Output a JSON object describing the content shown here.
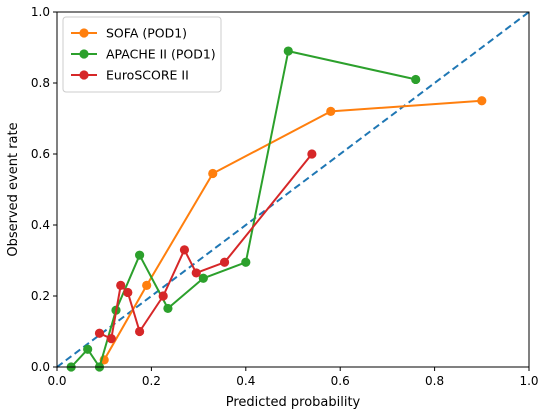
{
  "chart_data": {
    "type": "line",
    "title": "",
    "xlabel": "Predicted probability",
    "ylabel": "Observed event rate",
    "xlim": [
      0.0,
      1.0
    ],
    "ylim": [
      0.0,
      1.0
    ],
    "xticks": [
      "0.0",
      "0.2",
      "0.4",
      "0.6",
      "0.8",
      "1.0"
    ],
    "yticks": [
      "0.0",
      "0.2",
      "0.4",
      "0.6",
      "0.8",
      "1.0"
    ],
    "grid": false,
    "legend_position": "top-left",
    "reference_line": {
      "x": [
        0,
        1
      ],
      "y": [
        0,
        1
      ],
      "style": "dashed",
      "color": "#1f77b4"
    },
    "series": [
      {
        "name": "SOFA (POD1)",
        "color": "#ff7f0e",
        "x": [
          0.1,
          0.19,
          0.33,
          0.58,
          0.9
        ],
        "y": [
          0.02,
          0.23,
          0.545,
          0.72,
          0.75
        ]
      },
      {
        "name": "APACHE II (POD1)",
        "color": "#2ca02c",
        "x": [
          0.03,
          0.065,
          0.09,
          0.125,
          0.175,
          0.235,
          0.31,
          0.4,
          0.49,
          0.76
        ],
        "y": [
          0.0,
          0.05,
          0.0,
          0.16,
          0.315,
          0.165,
          0.25,
          0.295,
          0.89,
          0.81
        ]
      },
      {
        "name": "EuroSCORE II",
        "color": "#d62728",
        "x": [
          0.09,
          0.115,
          0.135,
          0.15,
          0.175,
          0.225,
          0.27,
          0.295,
          0.355,
          0.54
        ],
        "y": [
          0.095,
          0.08,
          0.23,
          0.21,
          0.1,
          0.2,
          0.33,
          0.265,
          0.295,
          0.6
        ]
      }
    ]
  }
}
